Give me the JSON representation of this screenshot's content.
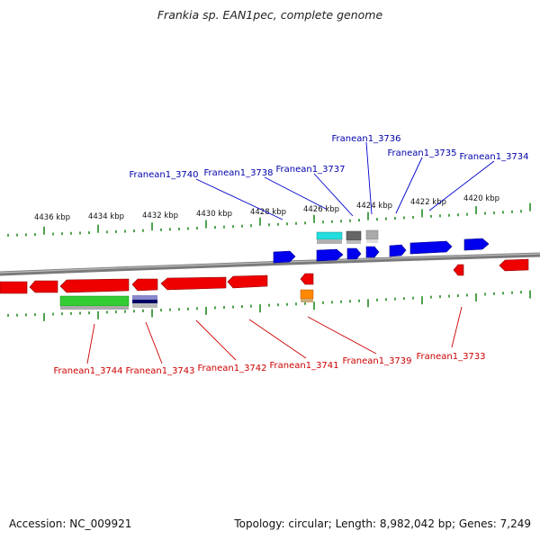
{
  "title": "Frankia sp. EAN1pec, complete genome",
  "footer": {
    "accession": "Accession: NC_009921",
    "summary": "Topology: circular; Length: 8,982,042 bp; Genes: 7,249"
  },
  "kbp_ticks": [
    "4436 kbp",
    "4434 kbp",
    "4432 kbp",
    "4430 kbp",
    "4428 kbp",
    "4426 kbp",
    "4424 kbp",
    "4422 kbp",
    "4420 kbp"
  ],
  "genes_top": [
    {
      "name": "Franean1_3740"
    },
    {
      "name": "Franean1_3738"
    },
    {
      "name": "Franean1_3737"
    },
    {
      "name": "Franean1_3736"
    },
    {
      "name": "Franean1_3735"
    },
    {
      "name": "Franean1_3734"
    }
  ],
  "genes_bottom": [
    {
      "name": "Franean1_3744"
    },
    {
      "name": "Franean1_3743"
    },
    {
      "name": "Franean1_3742"
    },
    {
      "name": "Franean1_3741"
    },
    {
      "name": "Franean1_3739"
    },
    {
      "name": "Franean1_3733"
    }
  ],
  "colors": {
    "forward_gene": "#0000ee",
    "reverse_gene": "#ee0000",
    "forward_label": "#0000aa",
    "reverse_label": "#cc0000",
    "backbone": "#888888",
    "tick": "#228b22",
    "rna_green": "#33cc33",
    "rna_cyan": "#22dddd",
    "rna_orange": "#ff8800"
  }
}
